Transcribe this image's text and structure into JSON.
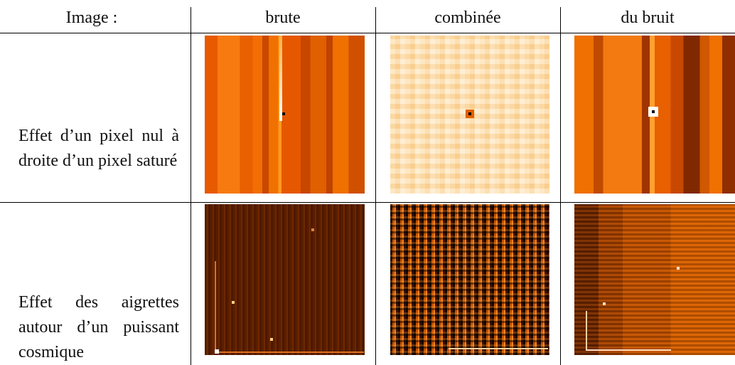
{
  "table": {
    "header": [
      "Image :",
      "brute",
      "combinée",
      "du bruit"
    ],
    "rows": [
      {
        "label": "Effet d’un pixel nul à droite d’un pixel saturé"
      },
      {
        "label": "Effet des aigrettes autour d’un puissant cosmique"
      }
    ]
  }
}
